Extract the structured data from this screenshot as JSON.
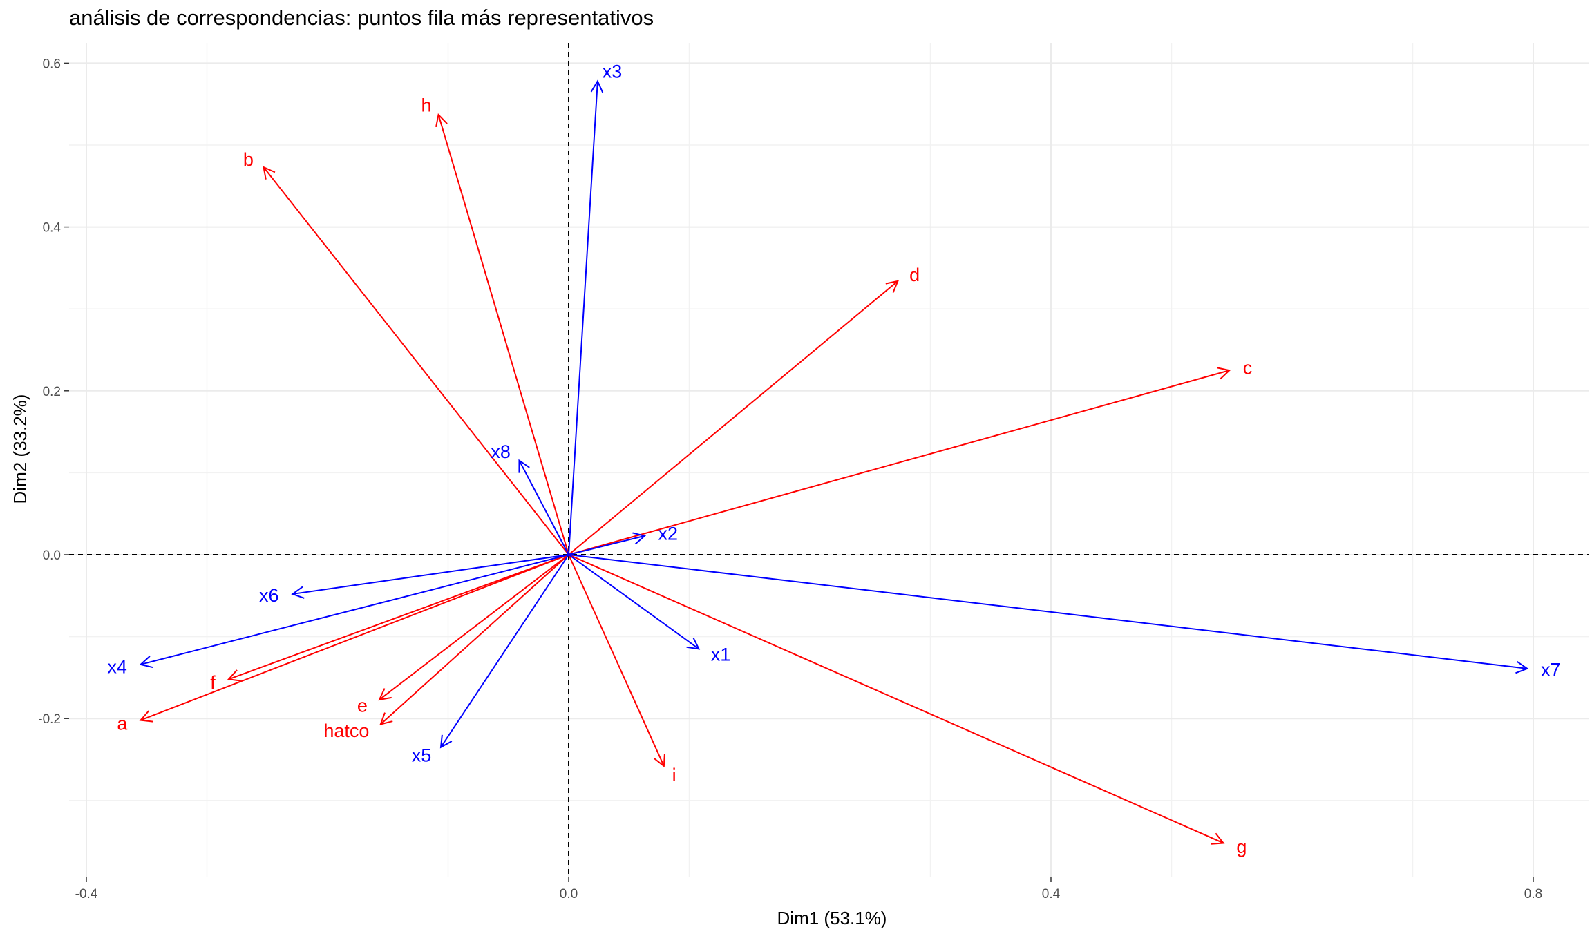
{
  "chart_data": {
    "type": "scatter",
    "title": "análisis de correspondencias: puntos fila más representativos",
    "xlabel": "Dim1 (53.1%)",
    "ylabel": "Dim2 (33.2%)",
    "xlim": [
      -0.4,
      0.8
    ],
    "ylim": [
      -0.4,
      0.6
    ],
    "x_ticks": [
      -0.4,
      0.0,
      0.4,
      0.8
    ],
    "y_ticks": [
      -0.2,
      0.0,
      0.2,
      0.4,
      0.6
    ],
    "x_tick_labels": [
      "-0.4",
      "0.0",
      "0.4",
      "0.8"
    ],
    "y_tick_labels": [
      "-0.2",
      "0.0",
      "0.2",
      "0.4",
      "0.6"
    ],
    "grid": true,
    "reference_lines": [
      "x=0",
      "y=0"
    ],
    "series": [
      {
        "color": "#ff0000",
        "points": [
          {
            "label": "a",
            "x": -0.355,
            "y": -0.202
          },
          {
            "label": "b",
            "x": -0.253,
            "y": 0.473
          },
          {
            "label": "c",
            "x": 0.548,
            "y": 0.225
          },
          {
            "label": "d",
            "x": 0.273,
            "y": 0.334
          },
          {
            "label": "e",
            "x": -0.157,
            "y": -0.177
          },
          {
            "label": "f",
            "x": -0.282,
            "y": -0.152
          },
          {
            "label": "g",
            "x": 0.543,
            "y": -0.352
          },
          {
            "label": "h",
            "x": -0.108,
            "y": 0.537
          },
          {
            "label": "i",
            "x": 0.079,
            "y": -0.258
          },
          {
            "label": "hatco",
            "x": -0.156,
            "y": -0.207
          }
        ]
      },
      {
        "color": "#0000ff",
        "points": [
          {
            "label": "x1",
            "x": 0.108,
            "y": -0.115
          },
          {
            "label": "x2",
            "x": 0.063,
            "y": 0.023
          },
          {
            "label": "x3",
            "x": 0.024,
            "y": 0.578
          },
          {
            "label": "x4",
            "x": -0.355,
            "y": -0.134
          },
          {
            "label": "x5",
            "x": -0.106,
            "y": -0.235
          },
          {
            "label": "x6",
            "x": -0.229,
            "y": -0.048
          },
          {
            "label": "x7",
            "x": 0.795,
            "y": -0.139
          },
          {
            "label": "x8",
            "x": -0.041,
            "y": 0.115
          }
        ]
      }
    ]
  }
}
